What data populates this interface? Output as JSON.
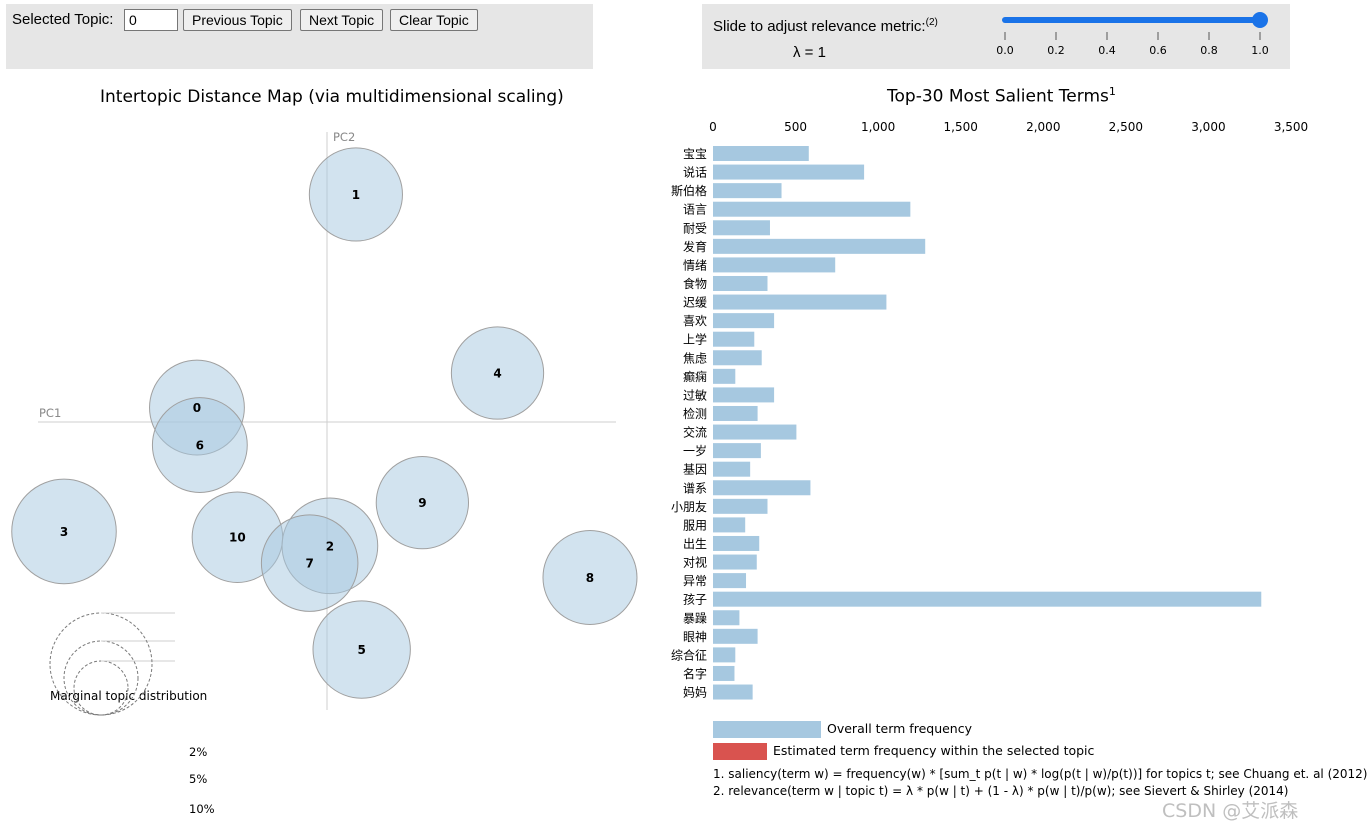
{
  "controls": {
    "selected_topic_label": "Selected Topic:",
    "selected_topic_value": "0",
    "prev_label": "Previous Topic",
    "next_label": "Next Topic",
    "clear_label": "Clear Topic",
    "slider_label": "Slide to adjust relevance metric:",
    "slider_footnote": "(2)",
    "lambda_text": "λ = 1",
    "lambda_value": 1,
    "slider_ticks": [
      "0.0",
      "0.2",
      "0.4",
      "0.6",
      "0.8",
      "1.0"
    ],
    "slider_color": "#1a73e8"
  },
  "chart_data": [
    {
      "type": "scatter",
      "title": "Intertopic Distance Map (via multidimensional scaling)",
      "xlabel": "PC1",
      "ylabel": "PC2",
      "xlim": [
        -1,
        1
      ],
      "ylim": [
        -1,
        1
      ],
      "bubble_color": "#a6c8e0",
      "topics": [
        {
          "label": "1",
          "x": 0.1,
          "y": 0.79,
          "size_pct": 5.4
        },
        {
          "label": "4",
          "x": 0.59,
          "y": 0.17,
          "size_pct": 5.3
        },
        {
          "label": "0",
          "x": -0.45,
          "y": 0.05,
          "size_pct": 5.6
        },
        {
          "label": "6",
          "x": -0.44,
          "y": -0.08,
          "size_pct": 5.6
        },
        {
          "label": "3",
          "x": -0.91,
          "y": -0.38,
          "size_pct": 6.8
        },
        {
          "label": "9",
          "x": 0.33,
          "y": -0.28,
          "size_pct": 5.3
        },
        {
          "label": "10",
          "x": -0.31,
          "y": -0.4,
          "size_pct": 5.1
        },
        {
          "label": "2",
          "x": 0.01,
          "y": -0.43,
          "size_pct": 5.7
        },
        {
          "label": "7",
          "x": -0.06,
          "y": -0.49,
          "size_pct": 5.8
        },
        {
          "label": "8",
          "x": 0.91,
          "y": -0.54,
          "size_pct": 5.5
        },
        {
          "label": "5",
          "x": 0.12,
          "y": -0.79,
          "size_pct": 5.9
        }
      ],
      "legend": {
        "title": "Marginal topic distribution",
        "sizes": [
          "2%",
          "5%",
          "10%"
        ]
      }
    },
    {
      "type": "bar",
      "orientation": "horizontal",
      "title": "Top-30 Most Salient Terms",
      "title_footnote": "1",
      "xlim": [
        0,
        3500
      ],
      "xticks": [
        0,
        500,
        1000,
        1500,
        2000,
        2500,
        3000,
        3500
      ],
      "xtick_labels": [
        "0",
        "500",
        "1,000",
        "1,500",
        "2,000",
        "2,500",
        "3,000",
        "3,500"
      ],
      "bar_color": "#a6c8e0",
      "selected_color": "#d9534f",
      "terms": [
        "宝宝",
        "说话",
        "斯伯格",
        "语言",
        "耐受",
        "发育",
        "情绪",
        "食物",
        "迟缓",
        "喜欢",
        "上学",
        "焦虑",
        "癫痫",
        "过敏",
        "检测",
        "交流",
        "一岁",
        "基因",
        "谱系",
        "小朋友",
        "服用",
        "出生",
        "对视",
        "异常",
        "孩子",
        "暴躁",
        "眼神",
        "综合征",
        "名字",
        "妈妈"
      ],
      "values": [
        580,
        915,
        415,
        1195,
        345,
        1285,
        740,
        330,
        1050,
        370,
        250,
        295,
        135,
        370,
        270,
        505,
        290,
        225,
        590,
        330,
        195,
        280,
        265,
        200,
        3320,
        160,
        270,
        135,
        130,
        240
      ],
      "legend": [
        {
          "label": "Overall term frequency",
          "color": "#a6c8e0"
        },
        {
          "label": "Estimated term frequency within the selected topic",
          "color": "#d9534f"
        }
      ]
    }
  ],
  "footnotes": [
    "1. saliency(term w) = frequency(w) * [sum_t p(t | w) * log(p(t | w)/p(t))] for topics t; see Chuang et. al (2012)",
    "2. relevance(term w | topic t) = λ * p(w | t) + (1 - λ) * p(w | t)/p(w); see Sievert & Shirley (2014)"
  ],
  "watermark": "CSDN @艾派森"
}
